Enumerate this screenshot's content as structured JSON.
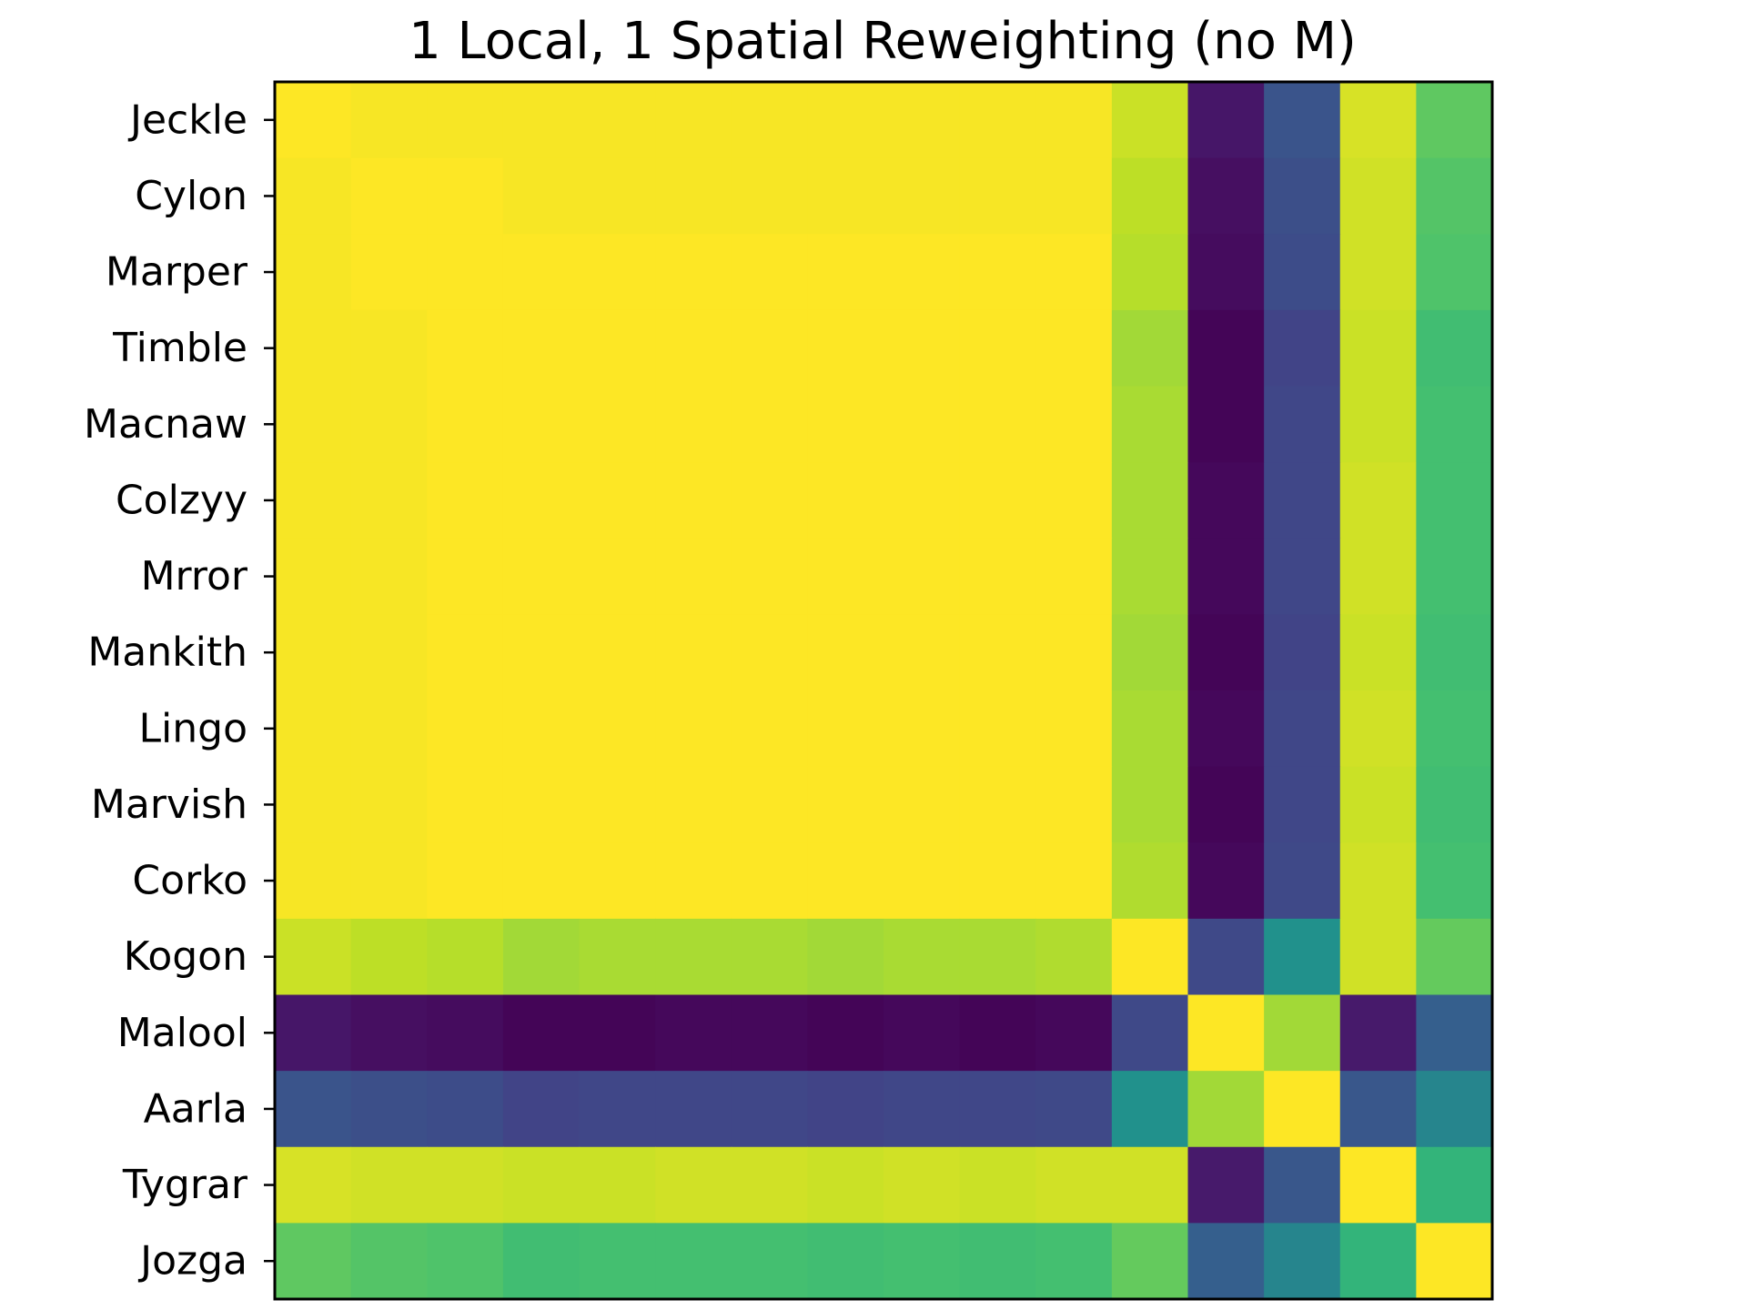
{
  "chart_data": {
    "type": "heatmap",
    "title": "1 Local, 1 Spatial Reweighting (no M)",
    "xlabel": "",
    "ylabel": "",
    "x_tick_labels_visible": false,
    "colormap": "viridis",
    "value_range": [
      0,
      1
    ],
    "rows": [
      "Jeckle",
      "Cylon",
      "Marper",
      "Timble",
      "Macnaw",
      "Colzyy",
      "Mrror",
      "Mankith",
      "Lingo",
      "Marvish",
      "Corko",
      "Kogon",
      "Malool",
      "Aarla",
      "Tygrar",
      "Jozga"
    ],
    "values": [
      [
        1.0,
        0.99,
        0.99,
        0.99,
        0.99,
        0.99,
        0.99,
        0.99,
        0.99,
        0.99,
        0.99,
        0.92,
        0.06,
        0.26,
        0.94,
        0.75
      ],
      [
        0.99,
        1.0,
        1.0,
        0.99,
        0.99,
        0.99,
        0.99,
        0.99,
        0.99,
        0.99,
        0.99,
        0.9,
        0.04,
        0.24,
        0.93,
        0.73
      ],
      [
        0.99,
        1.0,
        1.0,
        1.0,
        1.0,
        1.0,
        1.0,
        1.0,
        1.0,
        1.0,
        1.0,
        0.89,
        0.03,
        0.23,
        0.93,
        0.72
      ],
      [
        0.99,
        0.99,
        1.0,
        1.0,
        1.0,
        1.0,
        1.0,
        1.0,
        1.0,
        1.0,
        1.0,
        0.86,
        0.01,
        0.2,
        0.92,
        0.69
      ],
      [
        0.99,
        0.99,
        1.0,
        1.0,
        1.0,
        1.0,
        1.0,
        1.0,
        1.0,
        1.0,
        1.0,
        0.87,
        0.01,
        0.21,
        0.92,
        0.7
      ],
      [
        0.99,
        0.99,
        1.0,
        1.0,
        1.0,
        1.0,
        1.0,
        1.0,
        1.0,
        1.0,
        1.0,
        0.87,
        0.02,
        0.21,
        0.93,
        0.7
      ],
      [
        0.99,
        0.99,
        1.0,
        1.0,
        1.0,
        1.0,
        1.0,
        1.0,
        1.0,
        1.0,
        1.0,
        0.87,
        0.02,
        0.21,
        0.93,
        0.7
      ],
      [
        0.99,
        0.99,
        1.0,
        1.0,
        1.0,
        1.0,
        1.0,
        1.0,
        1.0,
        1.0,
        1.0,
        0.86,
        0.01,
        0.2,
        0.92,
        0.69
      ],
      [
        0.99,
        0.99,
        1.0,
        1.0,
        1.0,
        1.0,
        1.0,
        1.0,
        1.0,
        1.0,
        1.0,
        0.87,
        0.02,
        0.21,
        0.93,
        0.7
      ],
      [
        0.99,
        0.99,
        1.0,
        1.0,
        1.0,
        1.0,
        1.0,
        1.0,
        1.0,
        1.0,
        1.0,
        0.87,
        0.01,
        0.21,
        0.92,
        0.69
      ],
      [
        0.99,
        0.99,
        1.0,
        1.0,
        1.0,
        1.0,
        1.0,
        1.0,
        1.0,
        1.0,
        1.0,
        0.88,
        0.02,
        0.22,
        0.93,
        0.7
      ],
      [
        0.92,
        0.9,
        0.89,
        0.86,
        0.87,
        0.87,
        0.87,
        0.86,
        0.87,
        0.87,
        0.88,
        1.0,
        0.22,
        0.5,
        0.93,
        0.76
      ],
      [
        0.06,
        0.04,
        0.03,
        0.01,
        0.01,
        0.02,
        0.02,
        0.01,
        0.02,
        0.01,
        0.02,
        0.22,
        1.0,
        0.86,
        0.07,
        0.3
      ],
      [
        0.26,
        0.24,
        0.23,
        0.2,
        0.21,
        0.21,
        0.21,
        0.2,
        0.21,
        0.21,
        0.22,
        0.5,
        0.86,
        1.0,
        0.27,
        0.45
      ],
      [
        0.94,
        0.93,
        0.93,
        0.92,
        0.92,
        0.93,
        0.93,
        0.92,
        0.93,
        0.92,
        0.93,
        0.93,
        0.07,
        0.27,
        1.0,
        0.65
      ],
      [
        0.75,
        0.73,
        0.72,
        0.69,
        0.7,
        0.7,
        0.7,
        0.69,
        0.7,
        0.69,
        0.7,
        0.76,
        0.3,
        0.45,
        0.65,
        1.0
      ]
    ]
  }
}
